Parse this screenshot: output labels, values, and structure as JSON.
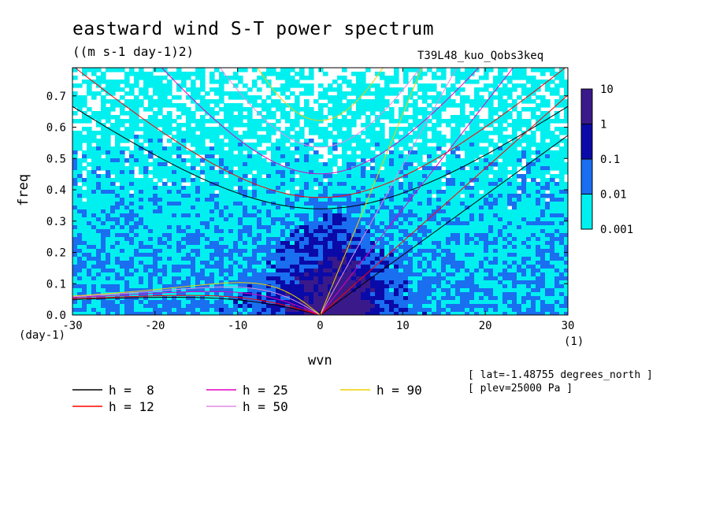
{
  "chart_data": {
    "type": "heatmap",
    "title": "eastward wind S-T power spectrum",
    "units": "((m s-1 day-1)2)",
    "run_label": "T39L48_kuo_Qobs3keq",
    "xlabel": "wvn",
    "ylabel": "freq",
    "x_unit": "(1)",
    "y_unit": "(day-1)",
    "xlim": [
      -30,
      30
    ],
    "ylim": [
      0,
      0.79
    ],
    "x_ticks": [
      -30,
      -20,
      -10,
      0,
      10,
      20,
      30
    ],
    "x_tick_labels": [
      "-30",
      "-20",
      "-10",
      "0",
      "10",
      "20",
      "30"
    ],
    "y_ticks": [
      0,
      0.1,
      0.2,
      0.3,
      0.4,
      0.5,
      0.6,
      0.7
    ],
    "y_tick_labels": [
      "0.0",
      "0.1",
      "0.2",
      "0.3",
      "0.4",
      "0.5",
      "0.6",
      "0.7"
    ],
    "colorbar": {
      "levels": [
        "10",
        "1",
        "0.1",
        "0.01",
        "0.001"
      ],
      "colors": [
        "#3a1a8a",
        "#0a0aa8",
        "#1a6ef0",
        "#00f0f0"
      ]
    },
    "shading_colors": {
      "low": "#00f0f0",
      "mid": "#1a6ef0",
      "high": "#0a0aa8",
      "peak": "#3a1a8a"
    },
    "dispersion_curves": [
      {
        "name": "h =  8",
        "h": 8,
        "color": "#000000"
      },
      {
        "name": "h = 12",
        "h": 12,
        "color": "#ff0000"
      },
      {
        "name": "h = 25",
        "h": 25,
        "color": "#e000c0"
      },
      {
        "name": "h = 50",
        "h": 50,
        "color": "#e28be2"
      },
      {
        "name": "h = 90",
        "h": 90,
        "color": "#f0d000"
      }
    ],
    "annotations": [
      "[ lat=-1.48755 degrees_north ]",
      "[ plev=25000 Pa ]"
    ]
  }
}
